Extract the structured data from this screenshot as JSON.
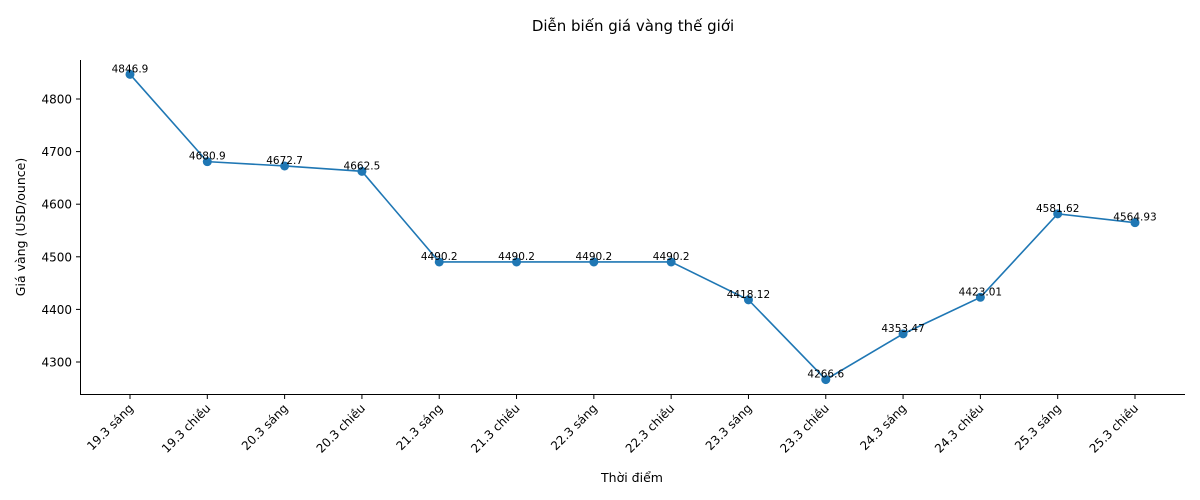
{
  "chart_data": {
    "type": "line",
    "title": "Diễn biến giá vàng thế giới",
    "xlabel": "Thời điểm",
    "ylabel": "Giá vàng (USD/ounce)",
    "categories": [
      "19.3 sáng",
      "19.3 chiều",
      "20.3 sáng",
      "20.3 chiều",
      "21.3 sáng",
      "21.3 chiều",
      "22.3 sáng",
      "22.3 chiều",
      "23.3 sáng",
      "23.3 chiều",
      "24.3 sáng",
      "24.3 chiều",
      "25.3 sáng",
      "25.3 chiều"
    ],
    "series": [
      {
        "name": "Giá vàng",
        "values": [
          4846.9,
          4680.9,
          4672.7,
          4662.5,
          4490.2,
          4490.2,
          4490.2,
          4490.2,
          4418.12,
          4266.6,
          4353.47,
          4423.01,
          4581.62,
          4564.93
        ],
        "labels": [
          "4846.9",
          "4680.9",
          "4672.7",
          "4662.5",
          "4490.2",
          "4490.2",
          "4490.2",
          "4490.2",
          "4418.12",
          "4266.6",
          "4353.47",
          "4423.01",
          "4581.62",
          "4564.93"
        ],
        "color": "#1f77b4",
        "marker": "circle"
      }
    ],
    "yticks": [
      4300,
      4400,
      4500,
      4600,
      4700,
      4800
    ],
    "ylim": [
      4237,
      4876
    ],
    "grid": false,
    "legend": false,
    "xtick_rotation": 45
  }
}
